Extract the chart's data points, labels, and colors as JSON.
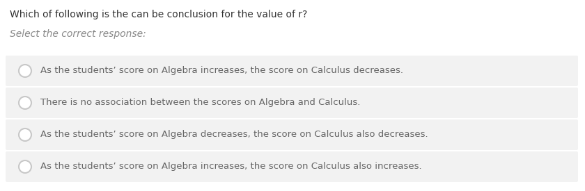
{
  "question": "Which of following is the can be conclusion for the value of r?",
  "instruction": "Select the correct response:",
  "options": [
    "As the students’ score on Algebra increases, the score on Calculus decreases.",
    "There is no association between the scores on Algebra and Calculus.",
    "As the students’ score on Algebra decreases, the score on Calculus also decreases.",
    "As the students’ score on Algebra increases, the score on Calculus also increases."
  ],
  "bg_color": "#ffffff",
  "option_box_color": "#f2f2f2",
  "question_color": "#333333",
  "instruction_color": "#888888",
  "option_text_color": "#666666",
  "circle_edge_color": "#c8c8c8",
  "circle_fill_color": "#ffffff",
  "question_fontsize": 10.0,
  "instruction_fontsize": 10.0,
  "option_fontsize": 9.5,
  "fig_width": 8.4,
  "fig_height": 2.75,
  "dpi": 100
}
